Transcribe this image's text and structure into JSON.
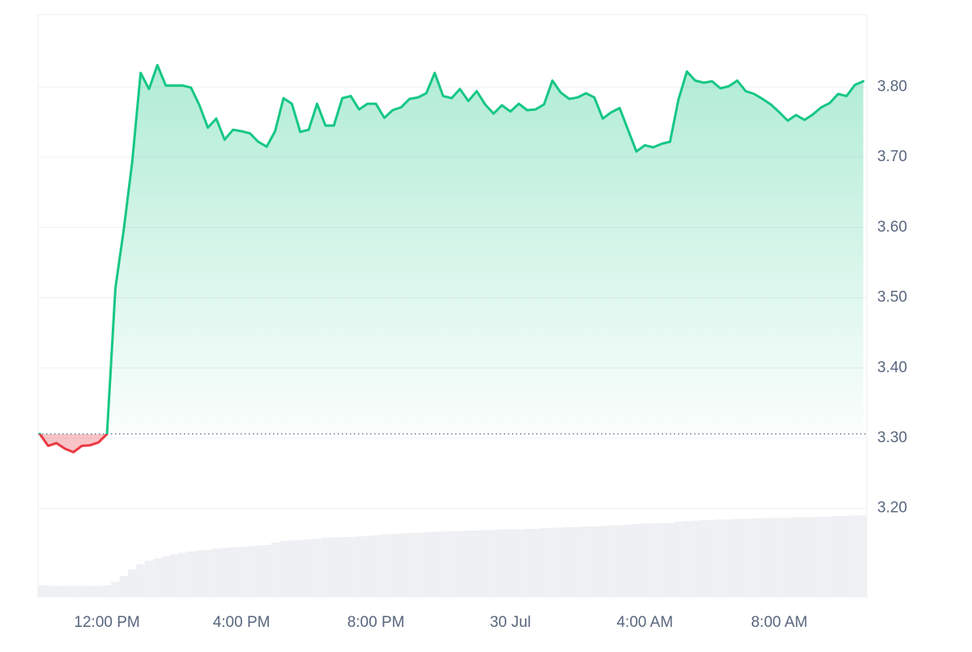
{
  "chart_data": {
    "type": "line",
    "x": [
      10,
      10.25,
      10.5,
      10.75,
      11,
      11.25,
      11.5,
      11.75,
      12,
      12.25,
      12.5,
      12.75,
      13,
      13.25,
      13.5,
      13.75,
      14,
      14.25,
      14.5,
      14.75,
      15,
      15.25,
      15.5,
      15.75,
      16,
      16.25,
      16.5,
      16.75,
      17,
      17.25,
      17.5,
      17.75,
      18,
      18.25,
      18.5,
      18.75,
      19,
      19.25,
      19.5,
      19.75,
      20,
      20.25,
      20.5,
      20.75,
      21,
      21.25,
      21.5,
      21.75,
      22,
      22.25,
      22.5,
      22.75,
      23,
      23.25,
      23.5,
      23.75,
      24,
      24.25,
      24.5,
      24.75,
      25,
      25.25,
      25.5,
      25.75,
      26,
      26.25,
      26.5,
      26.75,
      27,
      27.25,
      27.5,
      27.75,
      28,
      28.25,
      28.5,
      28.75,
      29,
      29.25,
      29.5,
      29.75,
      30,
      30.25,
      30.5,
      30.75,
      31,
      31.25,
      31.5,
      31.75,
      32,
      32.25,
      32.5,
      32.75,
      33,
      33.25,
      33.5,
      33.75,
      34,
      34.25,
      34.5
    ],
    "xlim": [
      9.95,
      34.6
    ],
    "xticks": [
      {
        "value": 12,
        "label": "12:00 PM"
      },
      {
        "value": 16,
        "label": "4:00 PM"
      },
      {
        "value": 20,
        "label": "8:00 PM"
      },
      {
        "value": 24,
        "label": "30 Jul"
      },
      {
        "value": 28,
        "label": "4:00 AM"
      },
      {
        "value": 32,
        "label": "8:00 AM"
      }
    ],
    "ylim": [
      3.074,
      3.903
    ],
    "yticks": [
      {
        "value": 3.2,
        "label": "3.20"
      },
      {
        "value": 3.3,
        "label": "3.30"
      },
      {
        "value": 3.4,
        "label": "3.40"
      },
      {
        "value": 3.5,
        "label": "3.50"
      },
      {
        "value": 3.6,
        "label": "3.60"
      },
      {
        "value": 3.7,
        "label": "3.70"
      },
      {
        "value": 3.8,
        "label": "3.80"
      }
    ],
    "y2lim": [
      0,
      100
    ],
    "grid": true,
    "series": [
      {
        "color": "#16c784",
        "negative_color": "#ea3943",
        "values": [
          3.306,
          3.289,
          3.293,
          3.285,
          3.28,
          3.289,
          3.29,
          3.294,
          3.306,
          3.514,
          3.597,
          3.693,
          3.82,
          3.797,
          3.831,
          3.802,
          3.802,
          3.802,
          3.799,
          3.774,
          3.742,
          3.755,
          3.725,
          3.739,
          3.737,
          3.734,
          3.722,
          3.715,
          3.737,
          3.784,
          3.776,
          3.736,
          3.739,
          3.776,
          3.745,
          3.745,
          3.784,
          3.787,
          3.768,
          3.776,
          3.776,
          3.756,
          3.767,
          3.771,
          3.783,
          3.785,
          3.791,
          3.82,
          3.787,
          3.784,
          3.797,
          3.78,
          3.794,
          3.775,
          3.762,
          3.774,
          3.765,
          3.776,
          3.767,
          3.768,
          3.775,
          3.809,
          3.792,
          3.783,
          3.785,
          3.791,
          3.785,
          3.755,
          3.764,
          3.77,
          3.739,
          3.708,
          3.717,
          3.714,
          3.719,
          3.722,
          3.782,
          3.822,
          3.809,
          3.806,
          3.808,
          3.798,
          3.801,
          3.809,
          3.794,
          3.79,
          3.783,
          3.775,
          3.764,
          3.752,
          3.76,
          3.753,
          3.761,
          3.771,
          3.777,
          3.79,
          3.787,
          3.803,
          3.808
        ]
      },
      {
        "type": "bar",
        "axis": "y2",
        "color": "#eef0f3",
        "values": [
          2.0,
          1.9,
          1.9,
          1.9,
          1.9,
          1.9,
          1.9,
          1.9,
          2.0,
          2.6,
          3.6,
          4.7,
          5.6,
          6.2,
          6.6,
          7.0,
          7.3,
          7.6,
          7.8,
          8.0,
          8.1,
          8.3,
          8.4,
          8.5,
          8.6,
          8.7,
          8.8,
          8.9,
          9.3,
          9.6,
          9.7,
          9.8,
          9.9,
          10.0,
          10.2,
          10.2,
          10.3,
          10.3,
          10.4,
          10.5,
          10.6,
          10.7,
          10.8,
          10.9,
          11.0,
          11.0,
          11.1,
          11.2,
          11.2,
          11.3,
          11.3,
          11.4,
          11.4,
          11.5,
          11.5,
          11.6,
          11.6,
          11.6,
          11.7,
          11.7,
          11.8,
          11.9,
          11.9,
          12.0,
          12.0,
          12.1,
          12.1,
          12.2,
          12.3,
          12.3,
          12.4,
          12.5,
          12.6,
          12.6,
          12.7,
          12.7,
          12.9,
          13.0,
          13.1,
          13.2,
          13.2,
          13.3,
          13.3,
          13.4,
          13.4,
          13.5,
          13.5,
          13.6,
          13.6,
          13.6,
          13.7,
          13.7,
          13.7,
          13.8,
          13.8,
          13.9,
          13.9,
          14.0,
          14.0
        ]
      }
    ]
  }
}
